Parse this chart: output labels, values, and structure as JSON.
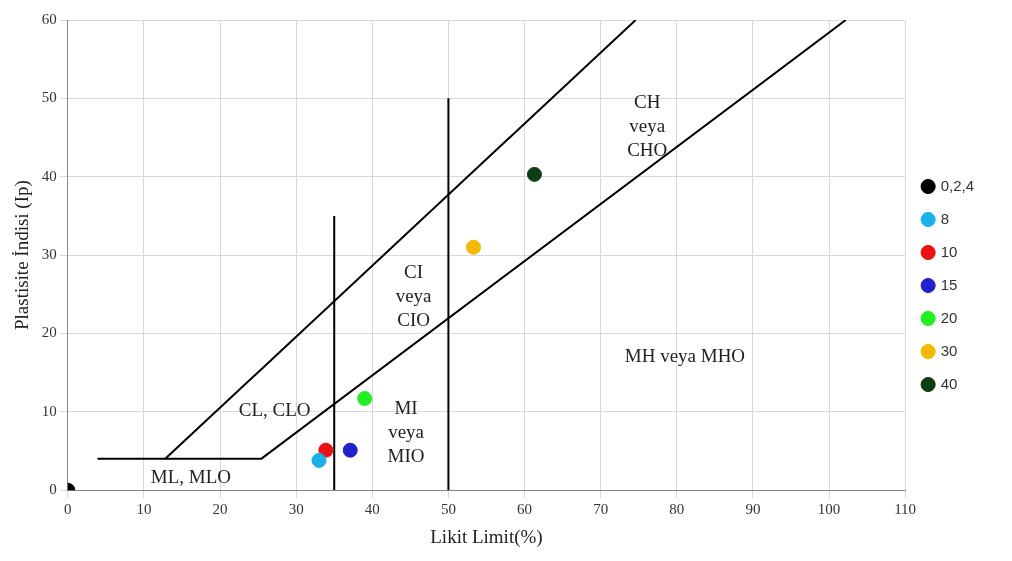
{
  "chart_data": {
    "type": "scatter",
    "xlabel": "Likit Limit(%)",
    "ylabel": "Plastisite İndisi (Ip)",
    "xlim": [
      0,
      110
    ],
    "xticks": [
      0,
      10,
      20,
      30,
      40,
      50,
      60,
      70,
      80,
      90,
      100,
      110
    ],
    "ylim": [
      0,
      60
    ],
    "yticks": [
      0,
      10,
      20,
      30,
      40,
      50,
      60
    ],
    "grid": true,
    "legend": "right",
    "marker": "circle",
    "series": [
      {
        "name": "0,2,4",
        "color": "#000000",
        "x": [
          0
        ],
        "values": [
          0
        ]
      },
      {
        "name": "8",
        "color": "#1ab0e8",
        "x": [
          33
        ],
        "values": [
          3.8
        ]
      },
      {
        "name": "10",
        "color": "#ee1111",
        "x": [
          33.9
        ],
        "values": [
          5.1
        ]
      },
      {
        "name": "15",
        "color": "#2222cc",
        "x": [
          37.1
        ],
        "values": [
          5.1
        ]
      },
      {
        "name": "20",
        "color": "#22ee22",
        "x": [
          39
        ],
        "values": [
          11.7
        ]
      },
      {
        "name": "30",
        "color": "#f5b800",
        "x": [
          53.3
        ],
        "values": [
          31
        ]
      },
      {
        "name": "40",
        "color": "#0d3d12",
        "x": [
          61.3
        ],
        "values": [
          40.3
        ]
      },
      {
        "type": "line",
        "color": "#000000",
        "marker": "none",
        "x": [
          12.8,
          74.6
        ],
        "values": [
          4,
          60
        ]
      },
      {
        "type": "line",
        "color": "#000000",
        "marker": "none",
        "x": [
          3.9,
          25.4,
          102.2
        ],
        "values": [
          4,
          4,
          60
        ]
      },
      {
        "type": "line",
        "color": "#000000",
        "marker": "none",
        "x": [
          35,
          35
        ],
        "values": [
          0,
          35
        ]
      },
      {
        "type": "line",
        "color": "#000000",
        "marker": "none",
        "x": [
          50,
          50
        ],
        "values": [
          0,
          50
        ]
      }
    ],
    "annotations": [
      "CH\nveya\nCHO",
      "CI\nveya\nCIO",
      "MH veya MHO",
      "CL, CLO",
      "MI\nveya\nMIO",
      "ML, MLO"
    ]
  }
}
